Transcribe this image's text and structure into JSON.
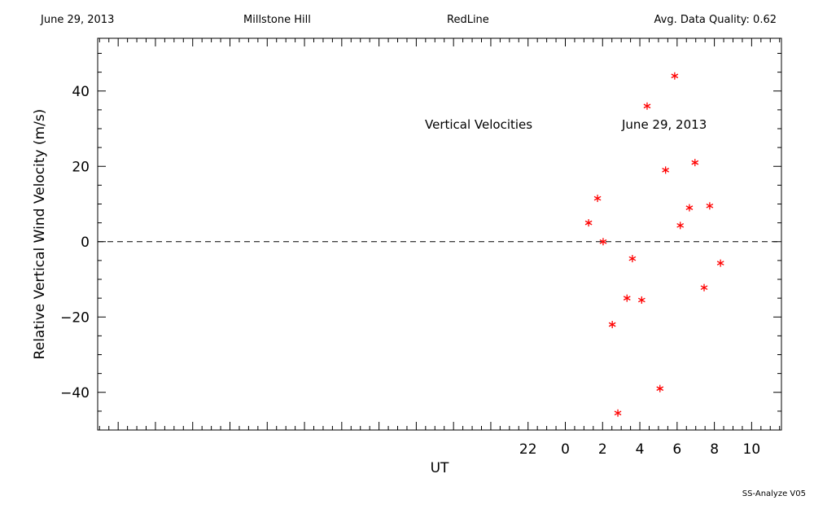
{
  "header": {
    "date": "June 29, 2013",
    "site": "Millstone Hill",
    "instrument": "RedLine",
    "quality": "Avg. Data Quality: 0.62"
  },
  "footer": {
    "software": "SS-Analyze V05"
  },
  "colors": {
    "marker": "#ff0000",
    "axis": "#000000",
    "background": "#ffffff"
  },
  "chart_data": {
    "type": "scatter",
    "title": "",
    "annotations": [
      "Vertical Velocities",
      "June 29, 2013"
    ],
    "xlabel": "UT",
    "ylabel": "Relative Vertical Wind Velocity (m/s)",
    "xlim": [
      -25.1,
      11.6
    ],
    "ylim": [
      -50,
      54
    ],
    "x_tick_values": [
      22,
      0,
      2,
      4,
      6,
      8,
      10
    ],
    "x_tick_labels": [
      "22",
      "0",
      "2",
      "4",
      "6",
      "8",
      "10"
    ],
    "y_ticks": [
      -40,
      -20,
      0,
      20,
      40
    ],
    "reference_line": {
      "y": 0,
      "style": "dashed"
    },
    "grid": false,
    "marker": "asterisk",
    "points": [
      {
        "x": 1.25,
        "y": 5
      },
      {
        "x": 1.73,
        "y": 11.5
      },
      {
        "x": 2.03,
        "y": 0
      },
      {
        "x": 2.52,
        "y": -22
      },
      {
        "x": 2.82,
        "y": -45.5
      },
      {
        "x": 3.31,
        "y": -15
      },
      {
        "x": 3.6,
        "y": -4.5
      },
      {
        "x": 4.1,
        "y": -15.5
      },
      {
        "x": 4.39,
        "y": 36
      },
      {
        "x": 5.08,
        "y": -39
      },
      {
        "x": 5.38,
        "y": 19
      },
      {
        "x": 5.87,
        "y": 44
      },
      {
        "x": 6.17,
        "y": 4.3
      },
      {
        "x": 6.66,
        "y": 9
      },
      {
        "x": 6.96,
        "y": 21
      },
      {
        "x": 7.45,
        "y": -12.2
      },
      {
        "x": 7.75,
        "y": 9.5
      },
      {
        "x": 8.33,
        "y": -5.7
      }
    ]
  }
}
